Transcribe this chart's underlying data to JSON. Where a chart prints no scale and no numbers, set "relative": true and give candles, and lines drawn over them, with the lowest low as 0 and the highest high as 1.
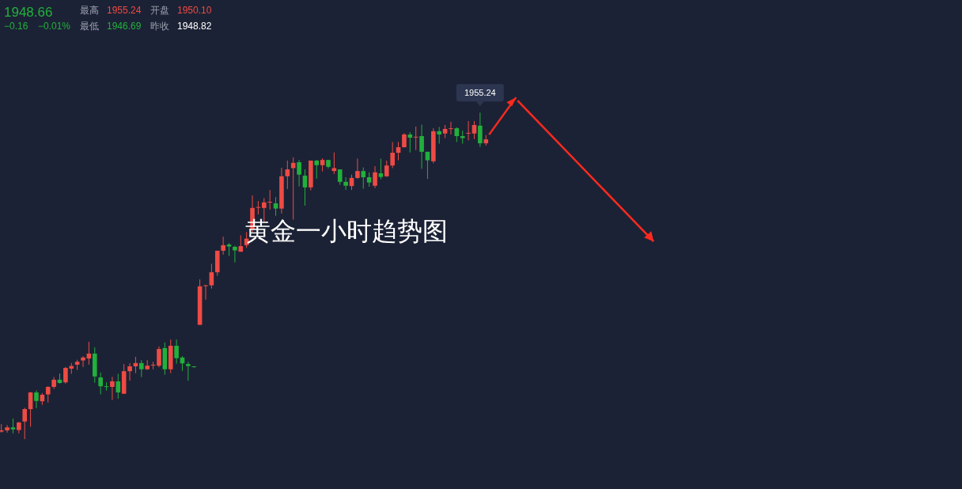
{
  "chart_data": {
    "type": "candlestick",
    "relative": true,
    "title": "黄金一小时趋势图",
    "colors": [
      "#ee4b44",
      "#ee4b44",
      "#22b03c",
      "#ee4b44",
      "#ee4b44",
      "#ee4b44",
      "#22b03c",
      "#ee4b44",
      "#ee4b44",
      "#ee4b44",
      "#22b03c",
      "#ee4b44",
      "#ee4b44",
      "#ee4b44",
      "#ee4b44",
      "#ee4b44",
      "#22b03c",
      "#22b03c",
      "#22b03c",
      "#ee4b44",
      "#22b03c",
      "#ee4b44",
      "#ee4b44",
      "#ee4b44",
      "#22b03c",
      "#ee4b44",
      "#ee4b44",
      "#ee4b44",
      "#22b03c",
      "#ee4b44",
      "#22b03c",
      "#22b03c",
      "#22b03c",
      "#22b03c",
      "#ee4b44",
      "#ee4b44",
      "#ee4b44",
      "#ee4b44",
      "#ee4b44",
      "#22b03c",
      "#22b03c",
      "#ee4b44",
      "#ee4b44",
      "#ee4b44",
      "#ee4b44",
      "#ee4b44",
      "#ee4b44",
      "#22b03c",
      "#ee4b44",
      "#ee4b44",
      "#ee4b44",
      "#22b03c",
      "#22b03c",
      "#ee4b44",
      "#22b03c",
      "#ee4b44",
      "#22b03c",
      "#ee4b44",
      "#22b03c",
      "#22b03c",
      "#ee4b44",
      "#ee4b44",
      "#22b03c",
      "#22b03c",
      "#ee4b44",
      "#22b03c",
      "#ee4b44",
      "#ee4b44",
      "#ee4b44",
      "#ee4b44",
      "#22b03c",
      "#ee4b44",
      "#22b03c",
      "#22b03c",
      "#ee4b44",
      "#22b03c",
      "#ee4b44",
      "#ee4b44",
      "#22b03c",
      "#22b03c",
      "#ee4b44",
      "#ee4b44",
      "#22b03c",
      "#ee4b44"
    ],
    "annotations": [
      "1948.66",
      "−0.16",
      "−0.01%",
      "最高",
      "1955.24",
      "开盘",
      "1950.10",
      "最低",
      "1946.69",
      "昨收",
      "1948.82",
      "1955.24"
    ],
    "categories": [
      null,
      null,
      null,
      null,
      null,
      null,
      null,
      null,
      null,
      null,
      null,
      null,
      null,
      null,
      null,
      null,
      null,
      null,
      null,
      null,
      null,
      null,
      null,
      null,
      null,
      null,
      null,
      null,
      null,
      null,
      null,
      null,
      null,
      null,
      null,
      null,
      null,
      null,
      null,
      null,
      null,
      null,
      null,
      null,
      null,
      null,
      null,
      null,
      null,
      null,
      null,
      null,
      null,
      null,
      null,
      null,
      null,
      null,
      null,
      null,
      null,
      null,
      null,
      null,
      null,
      null,
      null,
      null,
      null,
      null,
      null,
      null,
      null,
      null,
      null,
      null,
      null,
      null,
      null,
      null,
      null,
      null,
      null,
      null
    ],
    "ohlc": [
      [
        0.023,
        0.046,
        0.02,
        0.027
      ],
      [
        0.027,
        0.043,
        0.02,
        0.036
      ],
      [
        0.036,
        0.063,
        0.018,
        0.03
      ],
      [
        0.028,
        0.053,
        0.018,
        0.051
      ],
      [
        0.054,
        0.096,
        0.0,
        0.092
      ],
      [
        0.092,
        0.145,
        0.038,
        0.143
      ],
      [
        0.143,
        0.149,
        0.095,
        0.117
      ],
      [
        0.116,
        0.141,
        0.105,
        0.136
      ],
      [
        0.137,
        0.162,
        0.112,
        0.16
      ],
      [
        0.16,
        0.19,
        0.154,
        0.182
      ],
      [
        0.182,
        0.201,
        0.17,
        0.172
      ],
      [
        0.174,
        0.221,
        0.17,
        0.218
      ],
      [
        0.216,
        0.233,
        0.2,
        0.224
      ],
      [
        0.228,
        0.243,
        0.212,
        0.237
      ],
      [
        0.241,
        0.254,
        0.221,
        0.25
      ],
      [
        0.247,
        0.298,
        0.228,
        0.262
      ],
      [
        0.262,
        0.281,
        0.173,
        0.192
      ],
      [
        0.189,
        0.204,
        0.137,
        0.162
      ],
      [
        0.162,
        0.174,
        0.149,
        0.161
      ],
      [
        0.16,
        0.191,
        0.12,
        0.177
      ],
      [
        0.177,
        0.2,
        0.124,
        0.143
      ],
      [
        0.139,
        0.23,
        0.139,
        0.208
      ],
      [
        0.208,
        0.233,
        0.179,
        0.223
      ],
      [
        0.223,
        0.252,
        0.202,
        0.233
      ],
      [
        0.233,
        0.242,
        0.19,
        0.214
      ],
      [
        0.214,
        0.242,
        0.212,
        0.225
      ],
      [
        0.226,
        0.237,
        0.214,
        0.228
      ],
      [
        0.225,
        0.284,
        0.22,
        0.276
      ],
      [
        0.279,
        0.296,
        0.197,
        0.214
      ],
      [
        0.214,
        0.305,
        0.202,
        0.286
      ],
      [
        0.286,
        0.305,
        0.231,
        0.248
      ],
      [
        0.25,
        0.254,
        0.209,
        0.232
      ],
      [
        0.23,
        0.237,
        0.179,
        0.224
      ],
      [
        0.223,
        0.223,
        0.219,
        0.221
      ],
      [
        0.35,
        0.489,
        0.35,
        0.468
      ],
      [
        0.469,
        0.473,
        0.427,
        0.471
      ],
      [
        0.471,
        0.537,
        0.461,
        0.511
      ],
      [
        0.511,
        0.577,
        0.5,
        0.577
      ],
      [
        0.577,
        0.62,
        0.565,
        0.594
      ],
      [
        0.596,
        0.601,
        0.561,
        0.59
      ],
      [
        0.589,
        0.592,
        0.541,
        0.578
      ],
      [
        0.574,
        0.624,
        0.574,
        0.591
      ],
      [
        0.594,
        0.634,
        0.586,
        0.614
      ],
      [
        0.642,
        0.746,
        0.634,
        0.708
      ],
      [
        0.709,
        0.729,
        0.688,
        0.711
      ],
      [
        0.708,
        0.738,
        0.666,
        0.725
      ],
      [
        0.725,
        0.763,
        0.703,
        0.727
      ],
      [
        0.722,
        0.741,
        0.684,
        0.706
      ],
      [
        0.706,
        0.831,
        0.691,
        0.805
      ],
      [
        0.805,
        0.853,
        0.766,
        0.826
      ],
      [
        0.83,
        0.863,
        0.672,
        0.846
      ],
      [
        0.848,
        0.855,
        0.774,
        0.81
      ],
      [
        0.807,
        0.826,
        0.715,
        0.771
      ],
      [
        0.771,
        0.853,
        0.762,
        0.853
      ],
      [
        0.853,
        0.855,
        0.798,
        0.839
      ],
      [
        0.839,
        0.86,
        0.82,
        0.855
      ],
      [
        0.855,
        0.855,
        0.829,
        0.834
      ],
      [
        0.821,
        0.878,
        0.812,
        0.83
      ],
      [
        0.826,
        0.826,
        0.779,
        0.788
      ],
      [
        0.788,
        0.802,
        0.763,
        0.776
      ],
      [
        0.775,
        0.81,
        0.763,
        0.8
      ],
      [
        0.8,
        0.859,
        0.797,
        0.821
      ],
      [
        0.821,
        0.832,
        0.767,
        0.802
      ],
      [
        0.802,
        0.817,
        0.773,
        0.786
      ],
      [
        0.776,
        0.836,
        0.769,
        0.817
      ],
      [
        0.814,
        0.859,
        0.796,
        0.803
      ],
      [
        0.805,
        0.853,
        0.803,
        0.838
      ],
      [
        0.838,
        0.91,
        0.83,
        0.877
      ],
      [
        0.877,
        0.91,
        0.854,
        0.894
      ],
      [
        0.894,
        0.937,
        0.893,
        0.933
      ],
      [
        0.933,
        0.94,
        0.878,
        0.923
      ],
      [
        0.924,
        0.957,
        0.885,
        0.926
      ],
      [
        0.928,
        0.963,
        0.828,
        0.88
      ],
      [
        0.88,
        0.88,
        0.797,
        0.854
      ],
      [
        0.851,
        0.952,
        0.845,
        0.943
      ],
      [
        0.943,
        0.956,
        0.905,
        0.933
      ],
      [
        0.936,
        0.962,
        0.922,
        0.95
      ],
      [
        0.951,
        0.972,
        0.933,
        0.952
      ],
      [
        0.952,
        0.955,
        0.91,
        0.928
      ],
      [
        0.928,
        0.945,
        0.905,
        0.922
      ],
      [
        0.936,
        0.974,
        0.915,
        0.938
      ],
      [
        0.936,
        0.974,
        0.919,
        0.962
      ],
      [
        0.96,
        1.0,
        0.895,
        0.906
      ],
      [
        0.906,
        0.931,
        0.899,
        0.918
      ]
    ]
  }
}
